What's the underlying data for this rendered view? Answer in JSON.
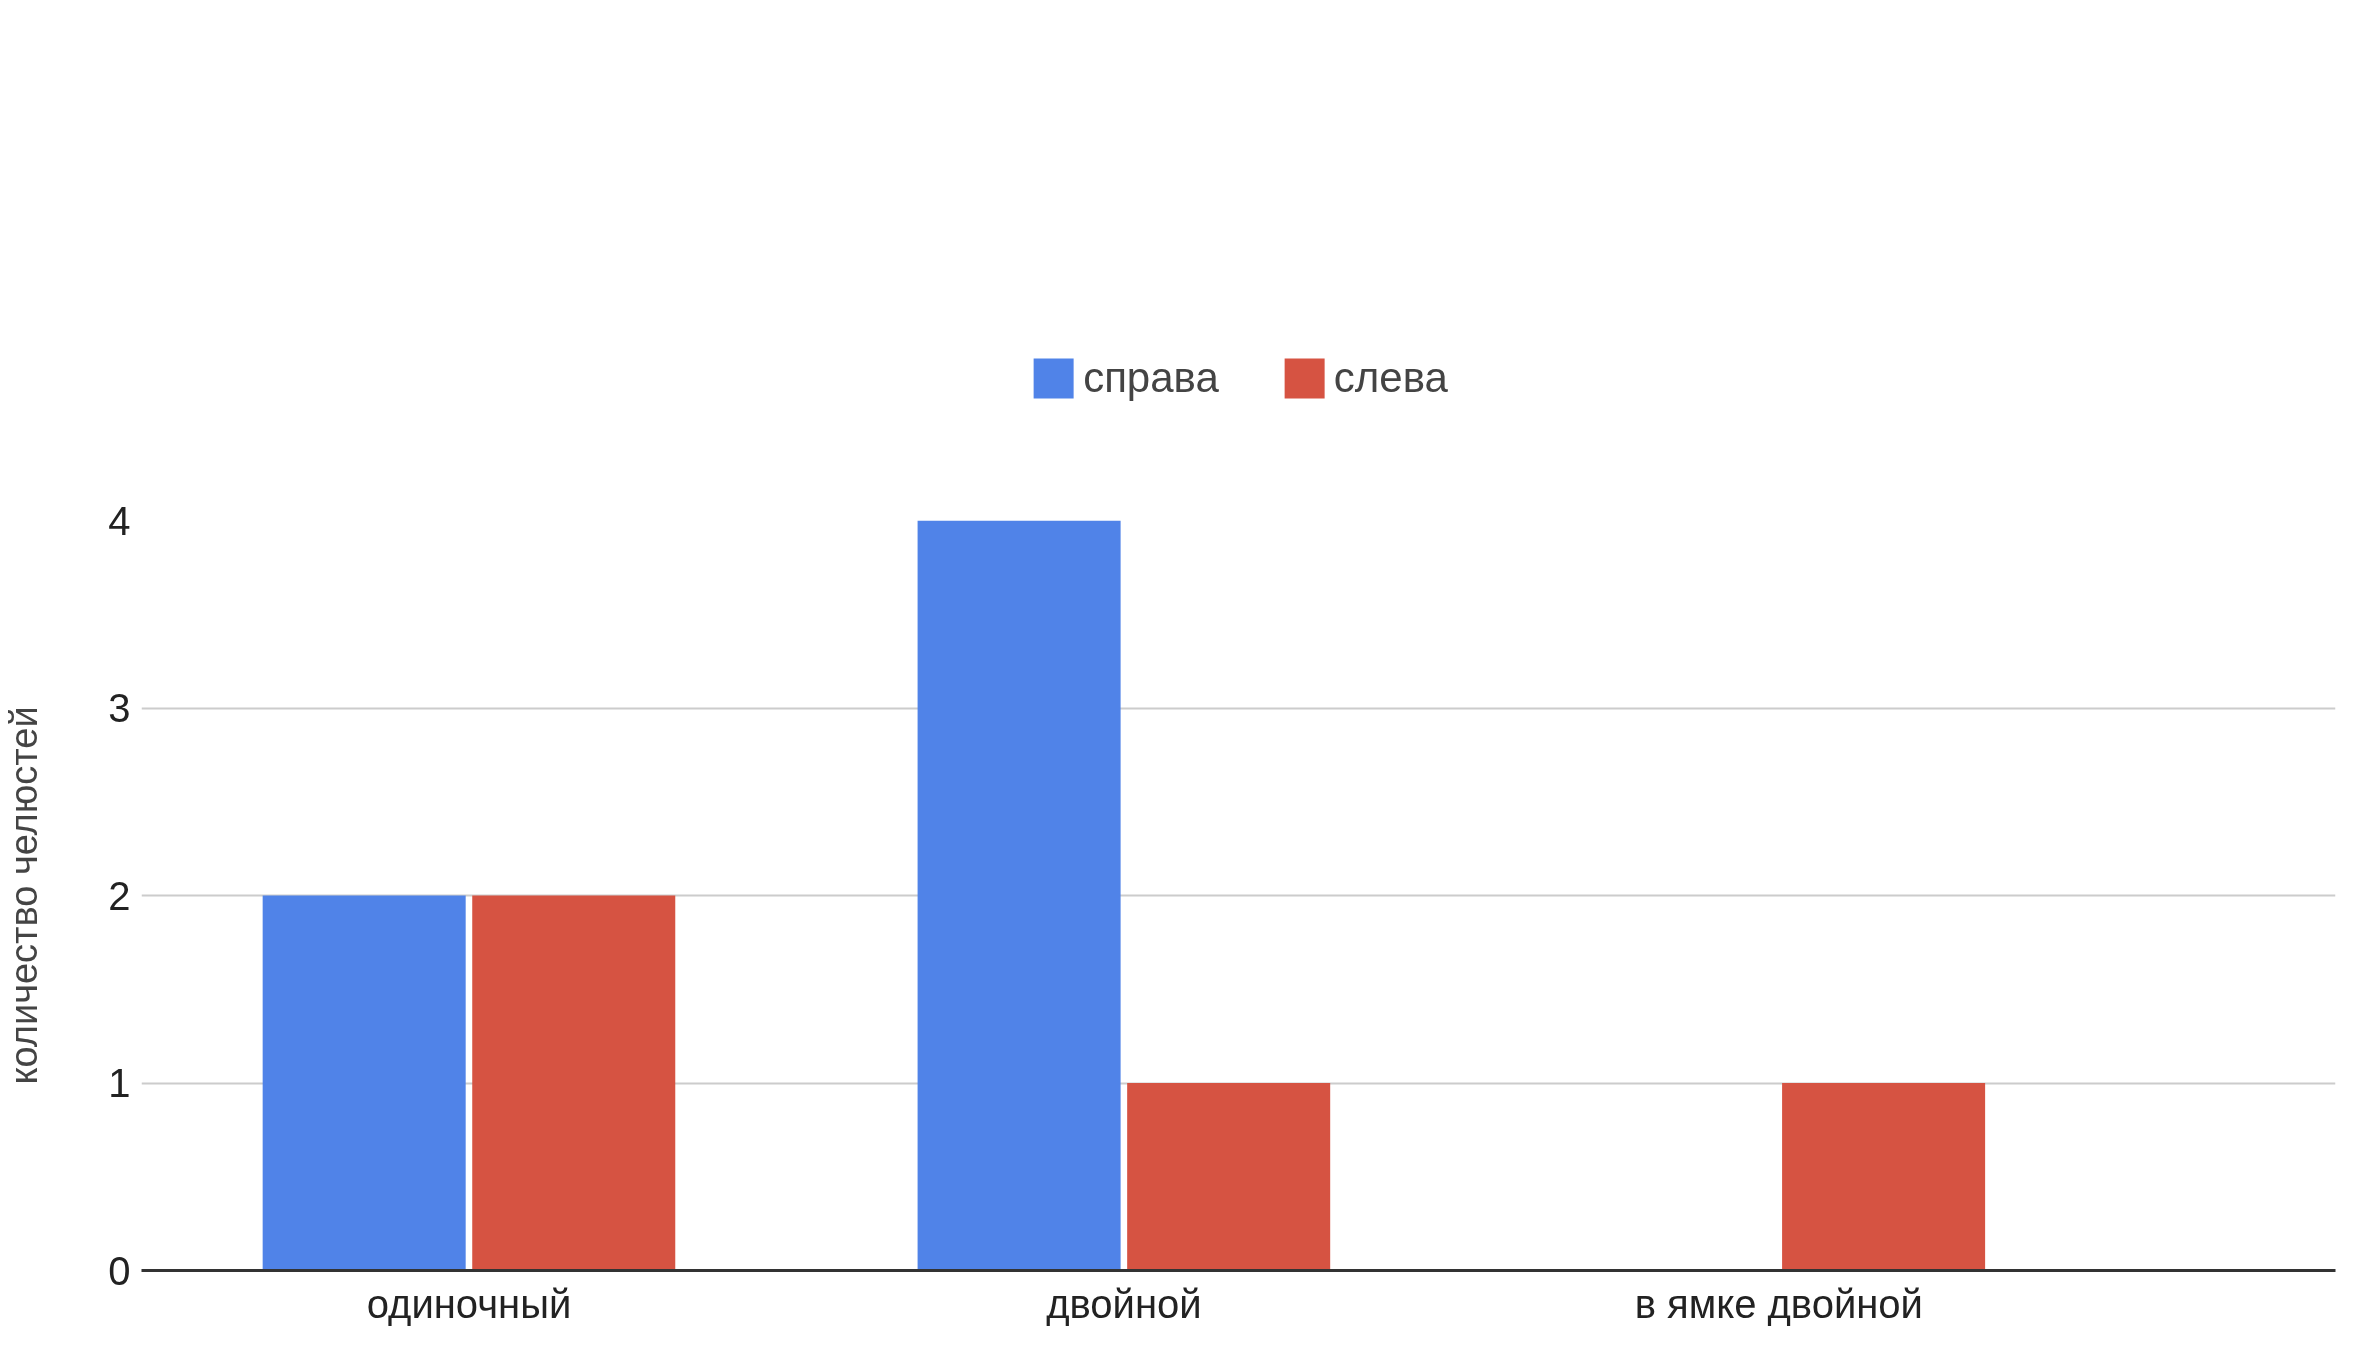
{
  "chart_data": {
    "type": "bar",
    "ylabel": "количество челюстей",
    "categories": [
      "одиночный",
      "двойной",
      "в ямке двойной"
    ],
    "series": [
      {
        "name": "справа",
        "color": "#5083e8",
        "values": [
          2,
          4,
          0
        ]
      },
      {
        "name": "слева",
        "color": "#d65342",
        "values": [
          2,
          1,
          1
        ]
      }
    ],
    "ylim": [
      0,
      4
    ],
    "yticks": [
      0,
      1,
      2,
      3,
      4
    ],
    "grid": "y",
    "legend": "top"
  }
}
